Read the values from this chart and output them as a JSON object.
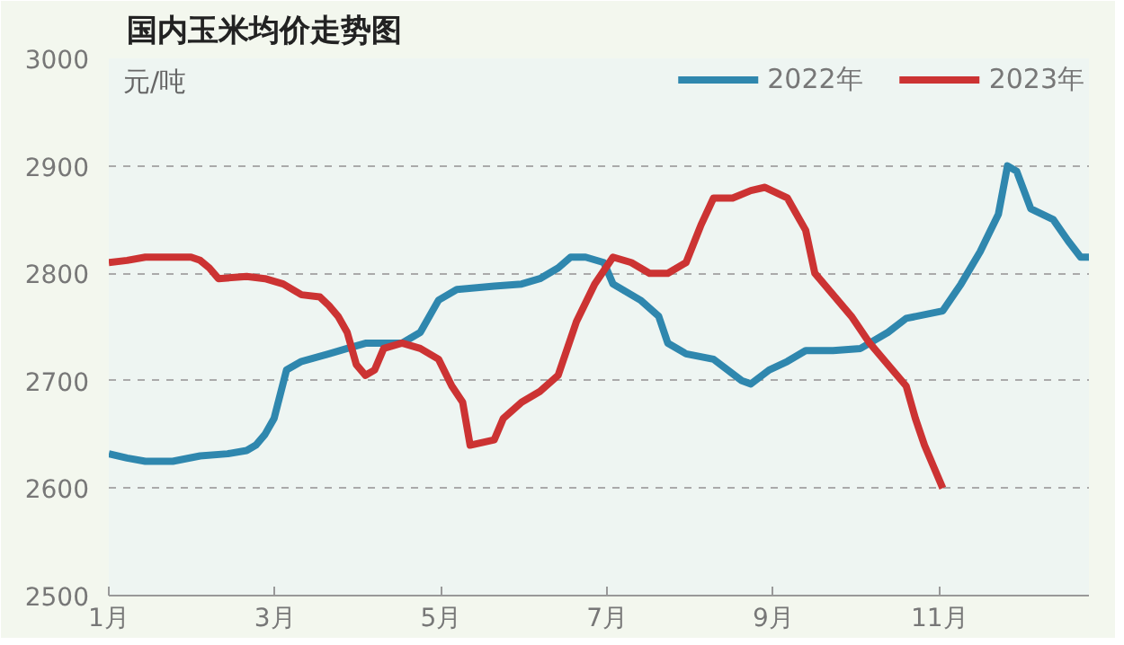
{
  "chart_data": {
    "type": "line",
    "title": "国内玉米均价走势图",
    "ylabel": "元/吨",
    "xlim": [
      1,
      12.8
    ],
    "xticks": [
      {
        "value": 1,
        "label": "1月"
      },
      {
        "value": 3,
        "label": "3月"
      },
      {
        "value": 5,
        "label": "5月"
      },
      {
        "value": 7,
        "label": "7月"
      },
      {
        "value": 9,
        "label": "9月"
      },
      {
        "value": 11,
        "label": "11月"
      }
    ],
    "ylim": [
      2500,
      3000
    ],
    "yticks": [
      2500,
      2600,
      2700,
      2800,
      2900,
      3000
    ],
    "grid": "y",
    "legend": "top right",
    "line_style": "solid",
    "marker": "none",
    "series": [
      {
        "name": "2022年",
        "color": "#2f87ae",
        "x": [
          1.0,
          1.22,
          1.44,
          1.77,
          2.1,
          2.43,
          2.66,
          2.77,
          2.88,
          2.99,
          3.14,
          3.32,
          3.65,
          3.87,
          4.1,
          4.31,
          4.53,
          4.75,
          4.97,
          5.19,
          5.64,
          5.97,
          6.19,
          6.41,
          6.56,
          6.74,
          6.96,
          7.07,
          7.4,
          7.62,
          7.73,
          7.95,
          8.28,
          8.62,
          8.73,
          8.95,
          9.17,
          9.39,
          9.72,
          10.05,
          10.38,
          10.6,
          11.04,
          11.26,
          11.49,
          11.71,
          11.82,
          11.93,
          12.1,
          12.37,
          12.55,
          12.7,
          12.8
        ],
        "values": [
          2632,
          2628,
          2625,
          2625,
          2630,
          2632,
          2635,
          2640,
          2650,
          2665,
          2710,
          2718,
          2725,
          2730,
          2735,
          2735,
          2735,
          2745,
          2775,
          2785,
          2788,
          2790,
          2795,
          2805,
          2815,
          2815,
          2810,
          2790,
          2775,
          2760,
          2735,
          2725,
          2720,
          2700,
          2697,
          2710,
          2718,
          2728,
          2728,
          2730,
          2745,
          2758,
          2765,
          2790,
          2820,
          2855,
          2900,
          2895,
          2860,
          2850,
          2830,
          2815,
          2815
        ]
      },
      {
        "name": "2023年",
        "color": "#cc3333",
        "x": [
          1.0,
          1.22,
          1.44,
          1.77,
          1.99,
          2.1,
          2.21,
          2.32,
          2.66,
          2.88,
          3.1,
          3.32,
          3.54,
          3.65,
          3.76,
          3.87,
          3.98,
          4.09,
          4.2,
          4.31,
          4.53,
          4.75,
          4.97,
          5.13,
          5.26,
          5.35,
          5.64,
          5.75,
          5.97,
          6.19,
          6.41,
          6.63,
          6.85,
          7.07,
          7.29,
          7.51,
          7.73,
          7.95,
          8.13,
          8.28,
          8.51,
          8.73,
          8.9,
          9.17,
          9.39,
          9.5,
          9.72,
          9.94,
          10.16,
          10.38,
          10.6,
          10.71,
          10.82,
          10.93,
          11.04
        ],
        "values": [
          2810,
          2812,
          2815,
          2815,
          2815,
          2812,
          2805,
          2795,
          2797,
          2795,
          2790,
          2780,
          2778,
          2770,
          2760,
          2745,
          2715,
          2705,
          2710,
          2730,
          2735,
          2730,
          2720,
          2695,
          2680,
          2640,
          2645,
          2665,
          2680,
          2690,
          2705,
          2755,
          2790,
          2815,
          2810,
          2800,
          2800,
          2810,
          2845,
          2870,
          2870,
          2877,
          2880,
          2870,
          2840,
          2800,
          2780,
          2760,
          2735,
          2715,
          2695,
          2665,
          2640,
          2620,
          2600
        ]
      }
    ]
  }
}
